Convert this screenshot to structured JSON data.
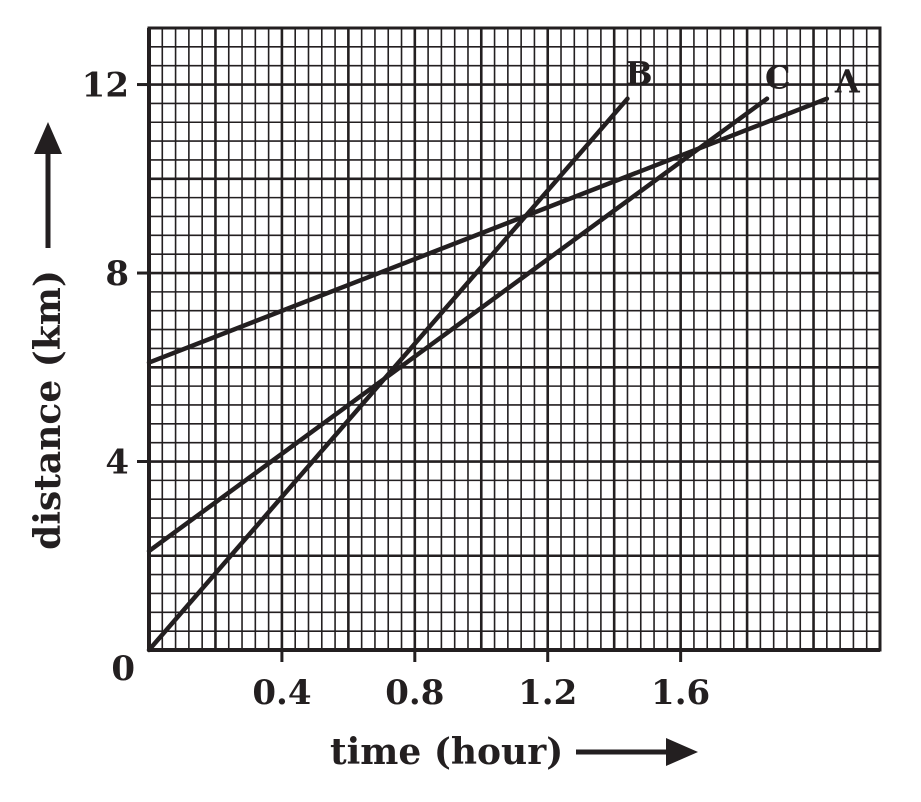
{
  "chart_data": {
    "type": "line",
    "title": "",
    "xlabel": "time (hour)",
    "ylabel": "distance (km)",
    "xlim": [
      0,
      2.2
    ],
    "ylim": [
      0,
      13.2
    ],
    "x_ticks": [
      0.4,
      0.8,
      1.2,
      1.6
    ],
    "x_tick_labels": [
      "0.4",
      "0.8",
      "1.2",
      "1.6"
    ],
    "y_ticks": [
      4,
      8,
      12
    ],
    "y_tick_labels": [
      "4",
      "8",
      "12"
    ],
    "origin_label": "0",
    "grid": true,
    "series": [
      {
        "name": "A",
        "x": [
          0,
          2.04
        ],
        "y": [
          6.1,
          11.7
        ]
      },
      {
        "name": "B",
        "x": [
          0,
          1.44
        ],
        "y": [
          0,
          11.7
        ]
      },
      {
        "name": "C",
        "x": [
          0,
          1.86
        ],
        "y": [
          2.1,
          11.7
        ]
      }
    ],
    "colors": {
      "line": "#231f20",
      "grid": "#231f20",
      "background": "#ffffff"
    }
  }
}
